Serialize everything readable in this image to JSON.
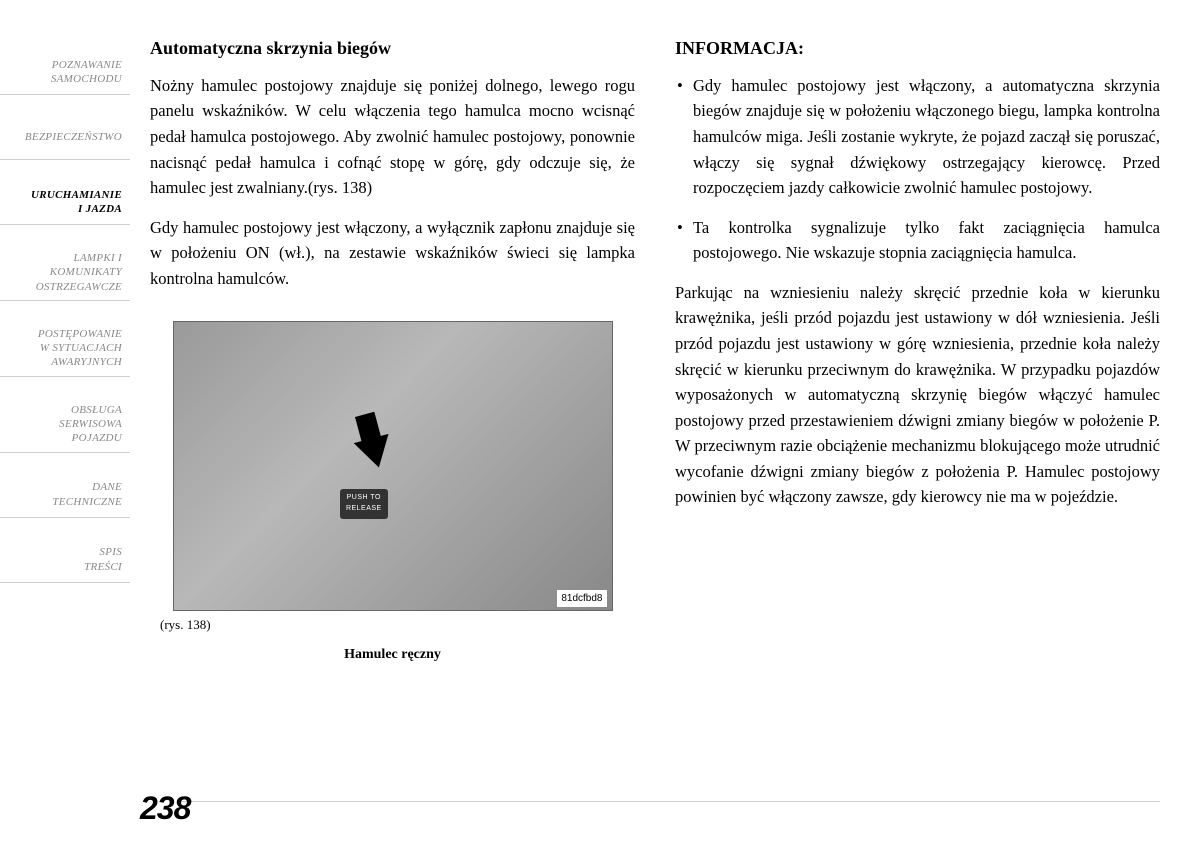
{
  "sidebar": {
    "items": [
      {
        "label": "POZNAWANIE\nSAMOCHODU",
        "active": false
      },
      {
        "label": "BEZPIECZEŃSTWO",
        "active": false
      },
      {
        "label": "URUCHAMIANIE\nI JAZDA",
        "active": true
      },
      {
        "label": "LAMPKI I\nKOMUNIKATY\nOSTRZEGAWCZE",
        "active": false
      },
      {
        "label": "POSTĘPOWANIE\nW SYTUACJACH\nAWARYJNYCH",
        "active": false
      },
      {
        "label": "OBSŁUGA\nSERWISOWA\nPOJAZDU",
        "active": false
      },
      {
        "label": "DANE\nTECHNICZNE",
        "active": false
      },
      {
        "label": "SPIS\nTREŚCI",
        "active": false
      }
    ]
  },
  "left": {
    "heading": "Automatyczna skrzynia biegów",
    "p1": "Nożny hamulec postojowy znajduje się poniżej dolnego, lewego rogu panelu wskaźników. W celu włączenia tego hamulca mocno wcisnąć pedał hamulca postojowego. Aby zwolnić hamulec postojowy, ponownie nacisnąć pedał hamulca i cofnąć stopę w górę, gdy odczuje się, że hamulec jest zwalniany.(rys.  138)",
    "p2": "Gdy hamulec postojowy jest włączony, a wyłącznik zapłonu znajduje się w położeniu ON (wł.), na zestawie wskaźników świeci się lampka kontrolna hamulców.",
    "figure": {
      "push_label": "PUSH TO\nRELEASE",
      "code": "81dcfbd8",
      "ref": "(rys. 138)",
      "caption": "Hamulec ręczny"
    }
  },
  "right": {
    "heading": "INFORMACJA:",
    "bullets": [
      "Gdy hamulec postojowy jest włączony, a automatyczna skrzynia biegów znajduje się w położeniu włączonego biegu, lampka kontrolna hamulców miga. Jeśli zostanie wykryte, że pojazd zaczął się poruszać, włączy się sygnał dźwiękowy ostrzegający kierowcę. Przed rozpoczęciem jazdy całkowicie zwolnić hamulec postojowy.",
      "Ta kontrolka sygnalizuje tylko fakt zaciągnięcia hamulca postojowego. Nie wskazuje stopnia zaciągnięcia hamulca."
    ],
    "p1": "Parkując na wzniesieniu należy skręcić przednie koła w kierunku krawężnika, jeśli przód pojazdu jest ustawiony w dół wzniesienia. Jeśli przód pojazdu jest ustawiony w górę wzniesienia, przednie koła należy skręcić w kierunku przeciwnym do krawężnika. W przypadku pojazdów wyposażonych w automatyczną skrzynię biegów włączyć hamulec postojowy przed przestawieniem dźwigni zmiany biegów w położenie P. W przeciwnym razie obciążenie mechanizmu blokującego może utrudnić wycofanie dźwigni zmiany biegów z położenia P. Hamulec postojowy powinien być włączony zawsze, gdy kierowcy nie ma w pojeździe."
  },
  "page_number": "238"
}
